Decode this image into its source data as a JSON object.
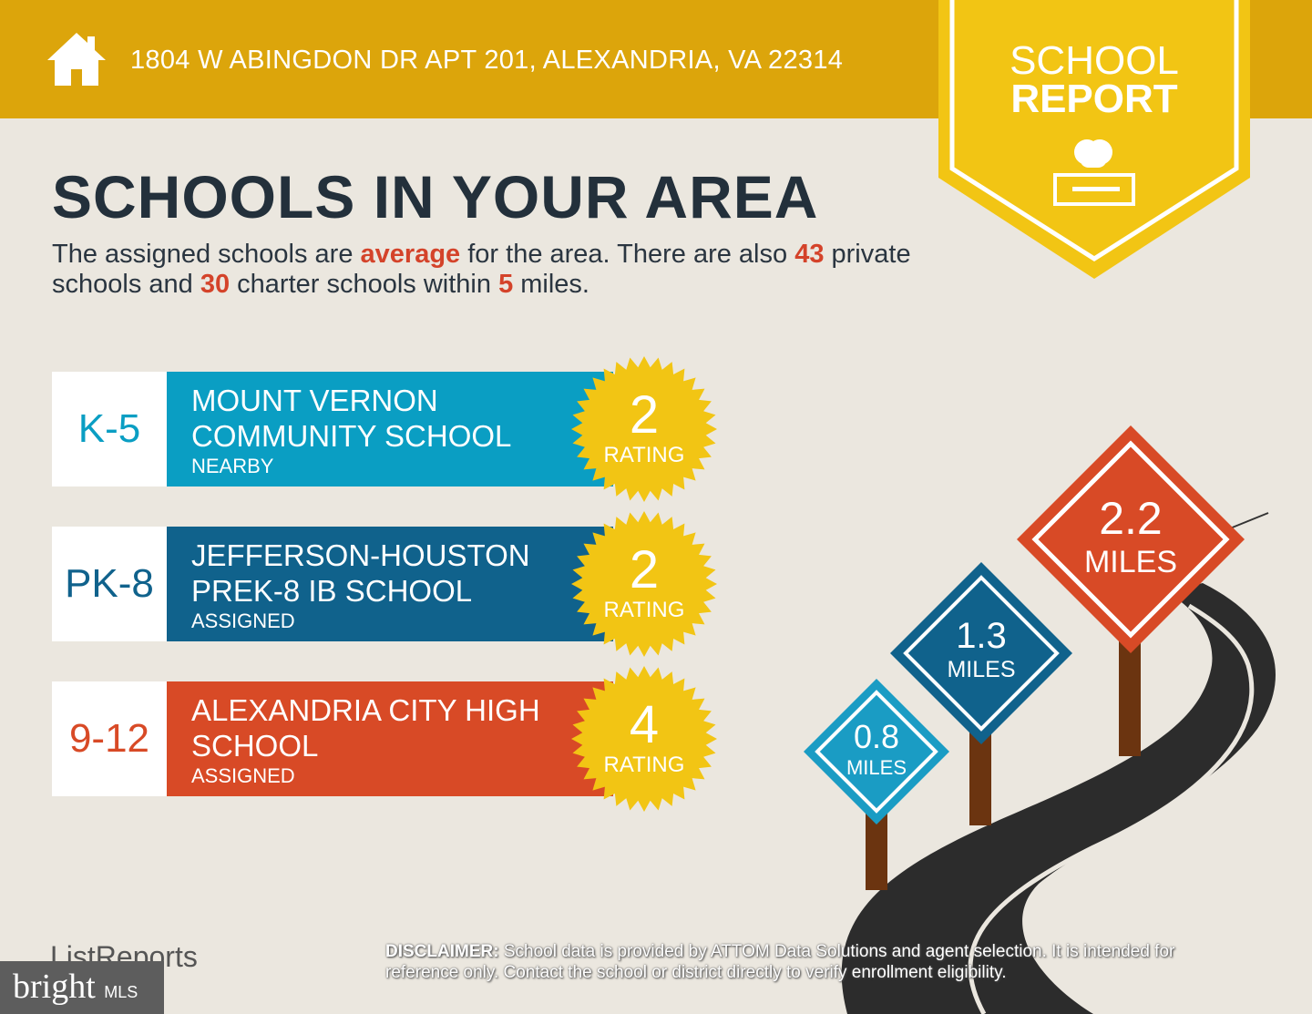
{
  "header": {
    "address": "1804 W ABINGDON DR APT 201, ALEXANDRIA, VA 22314",
    "icon": "house-icon"
  },
  "badge": {
    "line1": "SCHOOL",
    "line2": "REPORT",
    "icon": "apple-on-book-icon"
  },
  "title": "SCHOOLS IN YOUR AREA",
  "summary": {
    "p1": "The assigned schools are ",
    "quality": "average",
    "p2": " for the area. There are also ",
    "private_count": "43",
    "p3": " private schools and ",
    "charter_count": "30",
    "p4": " charter schools within ",
    "miles": "5",
    "p5": " miles."
  },
  "schools": [
    {
      "grade": "K-5",
      "name1": "MOUNT VERNON",
      "name2": "COMMUNITY SCHOOL",
      "status": "NEARBY",
      "rating": "2",
      "rating_label": "RATING",
      "color": "#0a9ec3"
    },
    {
      "grade": "PK-8",
      "name1": "JEFFERSON-HOUSTON",
      "name2": "PREK-8 IB SCHOOL",
      "status": "ASSIGNED",
      "rating": "2",
      "rating_label": "RATING",
      "color": "#10628c"
    },
    {
      "grade": "9-12",
      "name1": "ALEXANDRIA CITY HIGH",
      "name2": "SCHOOL",
      "status": "ASSIGNED",
      "rating": "4",
      "rating_label": "RATING",
      "color": "#d84a26"
    }
  ],
  "signs": [
    {
      "value": "0.8",
      "unit": "MILES",
      "color": "#1a9cc4"
    },
    {
      "value": "1.3",
      "unit": "MILES",
      "color": "#10628c"
    },
    {
      "value": "2.2",
      "unit": "MILES",
      "color": "#d84a26"
    }
  ],
  "footer": {
    "listreports": "ListReports",
    "bright": "bright",
    "mls": "MLS",
    "disclaimer_label": "DISCLAIMER:",
    "disclaimer": " School data is provided by ATTOM Data Solutions and agent selection. It is intended for reference only. Contact the school or district directly to verify enrollment eligibility."
  }
}
